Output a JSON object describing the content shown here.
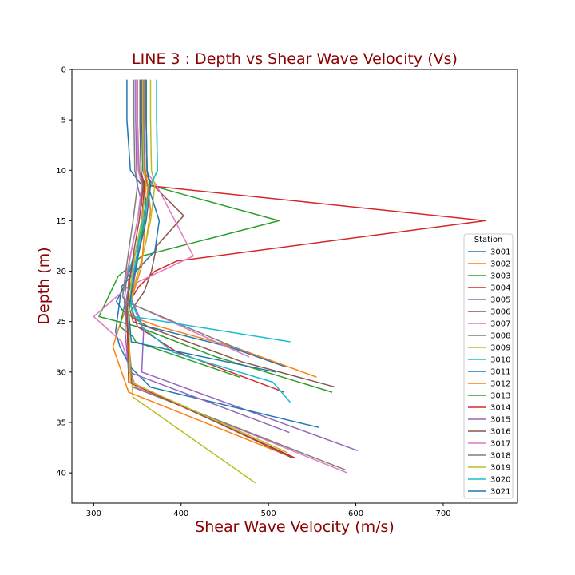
{
  "chart_data": {
    "type": "line",
    "title": "LINE 3 : Depth vs Shear Wave Velocity (Vs)",
    "xlabel": "Shear Wave Velocity (m/s)",
    "ylabel": "Depth (m)",
    "xlim": [
      275,
      785
    ],
    "ylim": [
      43,
      0
    ],
    "y_inverted": true,
    "xticks": [
      "300",
      "400",
      "500",
      "600",
      "700"
    ],
    "yticks": [
      "0",
      "5",
      "10",
      "15",
      "20",
      "25",
      "30",
      "35",
      "40"
    ],
    "grid": false,
    "legend": {
      "title": "Station",
      "placement": "right"
    },
    "series": [
      {
        "name": "3001",
        "color": "#1f77b4",
        "x": [
          338,
          338,
          342,
          355,
          360,
          357,
          352,
          345,
          337,
          332,
          326,
          334,
          362,
          455,
          520
        ],
        "y": [
          1,
          5,
          10,
          11.5,
          13,
          15,
          17,
          19,
          21,
          22,
          23,
          24,
          25.5,
          27.5,
          29.5
        ]
      },
      {
        "name": "3002",
        "color": "#ff7f0e",
        "x": [
          357,
          357,
          358,
          362,
          365,
          360,
          353,
          346,
          340,
          338,
          343,
          375,
          460,
          555
        ],
        "y": [
          1,
          5,
          10,
          11.5,
          14,
          17,
          19.5,
          21.5,
          23,
          24,
          24.5,
          25.5,
          27.5,
          30.5
        ]
      },
      {
        "name": "3003",
        "color": "#2ca02c",
        "x": [
          360,
          360,
          361,
          365,
          512,
          355,
          328,
          306,
          350,
          440,
          573
        ],
        "y": [
          1,
          5,
          10,
          11.5,
          15,
          18.5,
          20.5,
          24.5,
          25.5,
          28.5,
          32
        ]
      },
      {
        "name": "3004",
        "color": "#d62728",
        "x": [
          350,
          350,
          351,
          360,
          748,
          395,
          370,
          352,
          341,
          350,
          395,
          518
        ],
        "y": [
          1,
          5,
          10,
          11.5,
          15,
          19,
          20,
          21.5,
          23,
          25.5,
          28,
          32
        ]
      },
      {
        "name": "3005",
        "color": "#9467bd",
        "x": [
          348,
          348,
          349,
          350,
          357,
          352,
          350,
          346,
          344,
          352,
          357,
          355,
          602
        ],
        "y": [
          1,
          5,
          10,
          11.5,
          14,
          17,
          19,
          21,
          23,
          24.5,
          26,
          30,
          37.8
        ]
      },
      {
        "name": "3006",
        "color": "#8c564b",
        "x": [
          355,
          355,
          357,
          368,
          403,
          372,
          366,
          358,
          342,
          345,
          470,
          577
        ],
        "y": [
          1,
          5,
          10,
          11.5,
          14.5,
          17.5,
          20,
          22,
          24,
          25,
          29,
          31.5
        ]
      },
      {
        "name": "3007",
        "color": "#e377c2",
        "x": [
          358,
          358,
          359,
          372,
          414,
          340,
          300,
          332,
          348,
          590
        ],
        "y": [
          1,
          5,
          10,
          11.5,
          18.5,
          21.5,
          24.5,
          27,
          31.5,
          40
        ]
      },
      {
        "name": "3008",
        "color": "#7f7f7f",
        "x": [
          350,
          350,
          352,
          356,
          350,
          343,
          338,
          335,
          340,
          345,
          588
        ],
        "y": [
          1,
          5,
          10,
          11.5,
          15,
          18,
          20.5,
          23,
          27,
          31.5,
          39.7
        ]
      },
      {
        "name": "3009",
        "color": "#bcbd22",
        "x": [
          365,
          365,
          366,
          370,
          365,
          356,
          348,
          338,
          345,
          485
        ],
        "y": [
          1,
          5,
          10,
          11.5,
          15,
          18.5,
          21,
          25,
          32.5,
          41
        ]
      },
      {
        "name": "3010",
        "color": "#17becf",
        "x": [
          372,
          372,
          373,
          365,
          357,
          348,
          340,
          343,
          355,
          390,
          505,
          525
        ],
        "y": [
          1,
          5,
          10,
          11.5,
          15,
          18,
          20,
          23,
          25.5,
          28,
          31,
          33
        ]
      },
      {
        "name": "3011",
        "color": "#1f77b4",
        "x": [
          355,
          355,
          356,
          362,
          375,
          370,
          332,
          325,
          330,
          342,
          365,
          558
        ],
        "y": [
          1,
          5,
          10,
          11.5,
          15,
          18,
          21.5,
          26,
          27.5,
          29.5,
          31.5,
          35.5
        ]
      },
      {
        "name": "3012",
        "color": "#ff7f0e",
        "x": [
          358,
          358,
          359,
          362,
          358,
          355,
          346,
          331,
          322,
          340,
          528
        ],
        "y": [
          1,
          5,
          10,
          11.5,
          16,
          19.5,
          22,
          25,
          27.5,
          32,
          38.5
        ]
      },
      {
        "name": "3013",
        "color": "#2ca02c",
        "x": [
          360,
          360,
          361,
          364,
          358,
          352,
          343,
          335,
          330,
          345,
          348,
          467
        ],
        "y": [
          1,
          5,
          10,
          11.5,
          15,
          18,
          21,
          23.5,
          25.5,
          26.5,
          27,
          30.5
        ]
      },
      {
        "name": "3014",
        "color": "#d62728",
        "x": [
          353,
          353,
          354,
          358,
          355,
          348,
          340,
          338,
          340,
          530
        ],
        "y": [
          1,
          5,
          10,
          11.5,
          15,
          18,
          21,
          24,
          31,
          38.5
        ]
      },
      {
        "name": "3015",
        "color": "#9467bd",
        "x": [
          357,
          357,
          358,
          360,
          355,
          348,
          342,
          337,
          336,
          340,
          524
        ],
        "y": [
          1,
          5,
          10,
          11.5,
          15,
          18,
          20.5,
          23,
          26,
          30,
          36
        ]
      },
      {
        "name": "3016",
        "color": "#8c564b",
        "x": [
          353,
          353,
          354,
          357,
          352,
          346,
          341,
          338,
          343,
          527
        ],
        "y": [
          1,
          5,
          10,
          11.5,
          15,
          18,
          21,
          24,
          31,
          38.5
        ]
      },
      {
        "name": "3017",
        "color": "#e377c2",
        "x": [
          350,
          350,
          351,
          355,
          350,
          343,
          337,
          333,
          337,
          478
        ],
        "y": [
          1,
          5,
          10,
          11.5,
          15,
          18,
          20.5,
          22.5,
          23,
          28.5
        ]
      },
      {
        "name": "3018",
        "color": "#7f7f7f",
        "x": [
          346,
          346,
          347,
          350,
          345,
          340,
          336,
          333,
          336,
          482
        ],
        "y": [
          1,
          5,
          10,
          11.5,
          15,
          18,
          20.5,
          22.5,
          23,
          28.3
        ]
      },
      {
        "name": "3019",
        "color": "#bcbd22",
        "x": [
          356,
          356,
          357,
          360,
          355,
          348,
          343,
          340,
          342,
          522
        ],
        "y": [
          1,
          5,
          10,
          11.5,
          15,
          18,
          21,
          24,
          31,
          38
        ]
      },
      {
        "name": "3020",
        "color": "#17becf",
        "x": [
          372,
          372,
          373,
          365,
          357,
          350,
          345,
          342,
          345,
          525
        ],
        "y": [
          1,
          5,
          10,
          11.5,
          15,
          18,
          20.5,
          23,
          24.5,
          27
        ]
      },
      {
        "name": "3021",
        "color": "#1f77b4",
        "x": [
          360,
          360,
          361,
          365,
          360,
          352,
          345,
          340,
          343,
          508
        ],
        "y": [
          1,
          5,
          10,
          11.5,
          15,
          18,
          21,
          24,
          27,
          30
        ]
      }
    ]
  }
}
